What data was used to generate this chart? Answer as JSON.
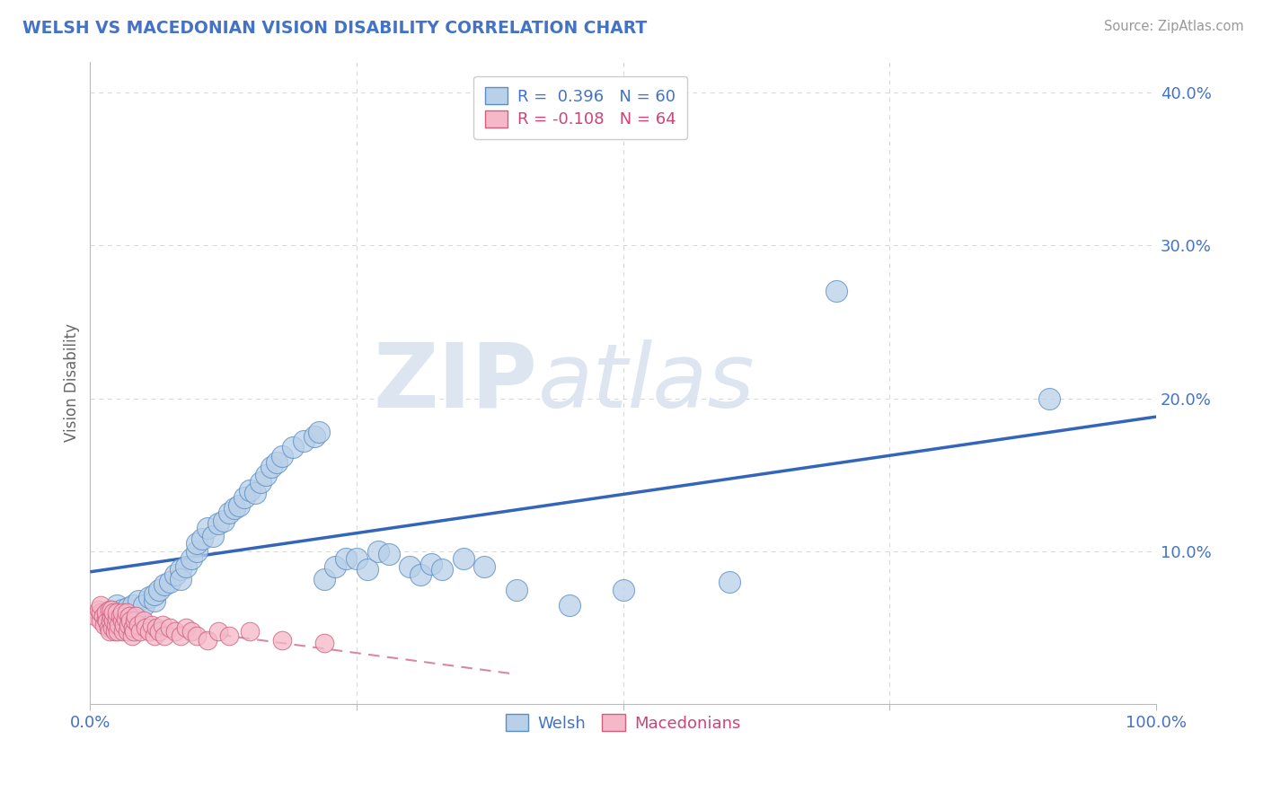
{
  "title": "WELSH VS MACEDONIAN VISION DISABILITY CORRELATION CHART",
  "source": "Source: ZipAtlas.com",
  "ylabel": "Vision Disability",
  "xlim": [
    0,
    1.0
  ],
  "ylim": [
    0,
    0.42
  ],
  "welsh_R": 0.396,
  "welsh_N": 60,
  "mac_R": -0.108,
  "mac_N": 64,
  "welsh_color": "#b8d0e8",
  "welsh_edge_color": "#5b8ec4",
  "welsh_line_color": "#3366bb",
  "mac_color": "#f5b8c8",
  "mac_edge_color": "#d06080",
  "mac_line_color": "#cc5577",
  "background_color": "#ffffff",
  "grid_color": "#cccccc",
  "watermark_zip": "ZIP",
  "watermark_atlas": "atlas",
  "welsh_x": [
    0.015,
    0.02,
    0.025,
    0.03,
    0.035,
    0.04,
    0.045,
    0.05,
    0.055,
    0.06,
    0.06,
    0.065,
    0.07,
    0.075,
    0.08,
    0.085,
    0.085,
    0.09,
    0.095,
    0.1,
    0.1,
    0.105,
    0.11,
    0.115,
    0.12,
    0.125,
    0.13,
    0.135,
    0.14,
    0.145,
    0.15,
    0.155,
    0.16,
    0.165,
    0.17,
    0.175,
    0.18,
    0.19,
    0.2,
    0.21,
    0.215,
    0.22,
    0.23,
    0.24,
    0.25,
    0.26,
    0.27,
    0.28,
    0.3,
    0.31,
    0.32,
    0.33,
    0.35,
    0.37,
    0.4,
    0.45,
    0.5,
    0.6,
    0.7,
    0.9
  ],
  "welsh_y": [
    0.06,
    0.058,
    0.065,
    0.062,
    0.063,
    0.065,
    0.068,
    0.065,
    0.07,
    0.068,
    0.072,
    0.075,
    0.078,
    0.08,
    0.085,
    0.088,
    0.082,
    0.09,
    0.095,
    0.1,
    0.105,
    0.108,
    0.115,
    0.11,
    0.118,
    0.12,
    0.125,
    0.128,
    0.13,
    0.135,
    0.14,
    0.138,
    0.145,
    0.15,
    0.155,
    0.158,
    0.162,
    0.168,
    0.172,
    0.175,
    0.178,
    0.082,
    0.09,
    0.095,
    0.095,
    0.088,
    0.1,
    0.098,
    0.09,
    0.085,
    0.092,
    0.088,
    0.095,
    0.09,
    0.075,
    0.065,
    0.075,
    0.08,
    0.27,
    0.2
  ],
  "mac_x": [
    0.005,
    0.008,
    0.01,
    0.01,
    0.01,
    0.012,
    0.013,
    0.015,
    0.015,
    0.016,
    0.017,
    0.018,
    0.018,
    0.019,
    0.02,
    0.02,
    0.021,
    0.022,
    0.022,
    0.023,
    0.024,
    0.025,
    0.025,
    0.026,
    0.027,
    0.028,
    0.03,
    0.03,
    0.031,
    0.032,
    0.033,
    0.034,
    0.035,
    0.036,
    0.037,
    0.038,
    0.039,
    0.04,
    0.041,
    0.042,
    0.043,
    0.045,
    0.047,
    0.05,
    0.052,
    0.055,
    0.058,
    0.06,
    0.062,
    0.065,
    0.068,
    0.07,
    0.075,
    0.08,
    0.085,
    0.09,
    0.095,
    0.1,
    0.11,
    0.12,
    0.13,
    0.15,
    0.18,
    0.22
  ],
  "mac_y": [
    0.058,
    0.062,
    0.055,
    0.06,
    0.065,
    0.058,
    0.052,
    0.056,
    0.06,
    0.054,
    0.05,
    0.048,
    0.062,
    0.055,
    0.058,
    0.062,
    0.05,
    0.055,
    0.06,
    0.048,
    0.052,
    0.056,
    0.06,
    0.048,
    0.052,
    0.058,
    0.055,
    0.06,
    0.048,
    0.052,
    0.056,
    0.06,
    0.048,
    0.052,
    0.058,
    0.055,
    0.045,
    0.05,
    0.048,
    0.055,
    0.058,
    0.052,
    0.048,
    0.055,
    0.05,
    0.048,
    0.052,
    0.045,
    0.05,
    0.048,
    0.052,
    0.045,
    0.05,
    0.048,
    0.045,
    0.05,
    0.048,
    0.045,
    0.042,
    0.048,
    0.045,
    0.048,
    0.042,
    0.04
  ]
}
